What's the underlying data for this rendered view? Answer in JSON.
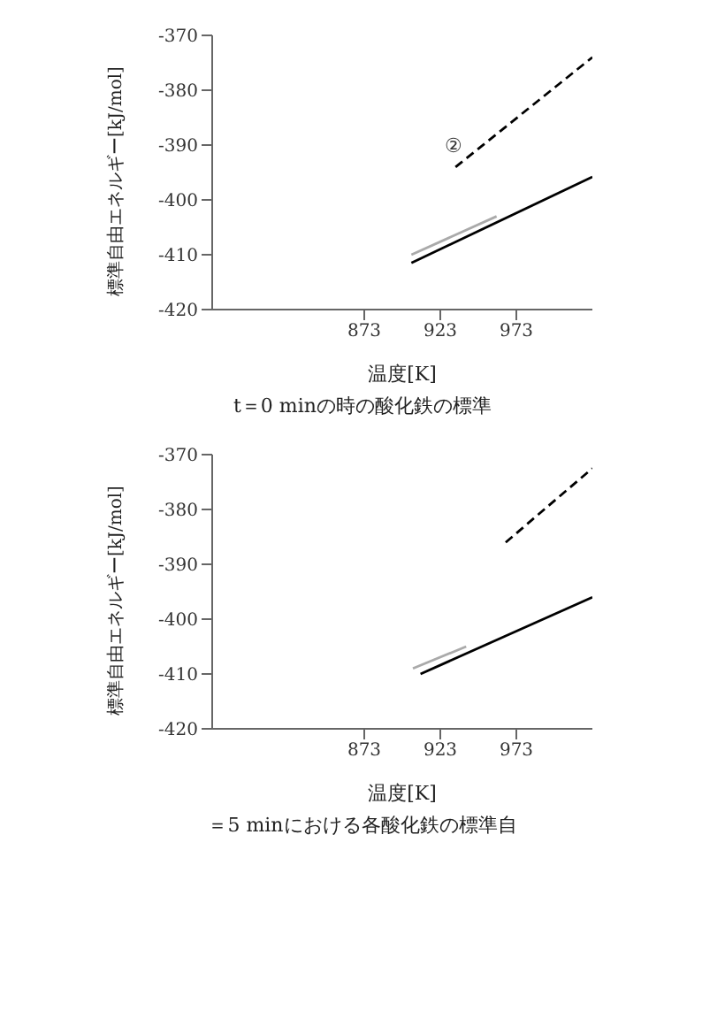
{
  "chart_data": [
    {
      "type": "line",
      "xlabel": "温度[K]",
      "ylabel": "標準自由エネルギー[kJ/mol]",
      "xlim": [
        773,
        1023
      ],
      "xticks": [
        873,
        923,
        973
      ],
      "ylim": [
        -420,
        -370
      ],
      "yticks": [
        -420,
        -410,
        -400,
        -390,
        -380,
        -370
      ],
      "grid": false,
      "legend": false,
      "marker": "none",
      "series": [
        {
          "color": "#000000",
          "line_style": "solid",
          "x": [
            904,
            1023
          ],
          "values": [
            -411.5,
            -395.8
          ]
        },
        {
          "color": "#aaaaaa",
          "line_style": "solid",
          "x": [
            904,
            960
          ],
          "values": [
            -410,
            -403
          ]
        },
        {
          "color": "#000000",
          "line_style": "dashed",
          "x": [
            933,
            1023
          ],
          "values": [
            -394,
            -374
          ]
        }
      ],
      "annotations": [
        {
          "text": "②",
          "x": 942,
          "y": -392
        },
        "t＝0 minの時の酸化鉄の標準"
      ]
    },
    {
      "type": "line",
      "xlabel": "温度[K]",
      "ylabel": "標準自由エネルギー[kJ/mol]",
      "xlim": [
        773,
        1023
      ],
      "xticks": [
        873,
        923,
        973
      ],
      "ylim": [
        -420,
        -370
      ],
      "yticks": [
        -420,
        -410,
        -400,
        -390,
        -380,
        -370
      ],
      "grid": false,
      "legend": false,
      "marker": "none",
      "series": [
        {
          "color": "#000000",
          "line_style": "solid",
          "x": [
            910,
            1023
          ],
          "values": [
            -410,
            -396
          ]
        },
        {
          "color": "#aaaaaa",
          "line_style": "solid",
          "x": [
            905,
            940
          ],
          "values": [
            -409,
            -405
          ]
        },
        {
          "color": "#000000",
          "line_style": "dashed",
          "x": [
            966,
            1023
          ],
          "values": [
            -386,
            -372.5
          ]
        }
      ],
      "annotations": [
        "＝5 minにおける各酸化鉄の標準自"
      ]
    }
  ]
}
